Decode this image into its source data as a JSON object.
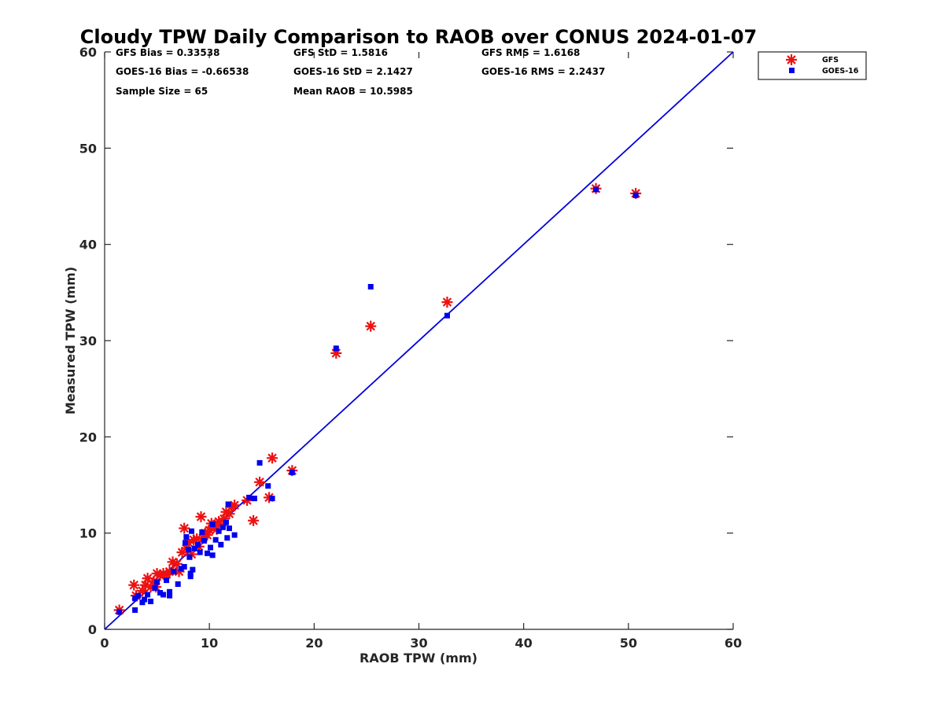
{
  "chart_data": {
    "type": "scatter",
    "title": "Cloudy TPW Daily Comparison to RAOB over CONUS 2024-01-07",
    "xlabel": "RAOB TPW (mm)",
    "ylabel": "Measured TPW (mm)",
    "xlim": [
      0,
      60
    ],
    "ylim": [
      0,
      60
    ],
    "xticks": [
      "0",
      "10",
      "20",
      "30",
      "40",
      "50",
      "60"
    ],
    "yticks": [
      "0",
      "10",
      "20",
      "30",
      "40",
      "50",
      "60"
    ],
    "reference_line": {
      "from": [
        0,
        0
      ],
      "to": [
        60,
        60
      ],
      "color": "#0000dd"
    },
    "legend_position": "top-right outside",
    "stats": [
      "GFS Bias = 0.33538",
      "GFS StD = 1.5816",
      "GFS RMS = 1.6168",
      "GOES-16 Bias = -0.66538",
      "GOES-16 StD = 2.1427",
      "GOES-16 RMS = 2.2437",
      "Sample Size = 65",
      "Mean RAOB = 10.5985"
    ],
    "series": [
      {
        "name": "GFS",
        "marker": "asterisk",
        "color": "#ee1111",
        "points": [
          [
            1.4,
            2.0
          ],
          [
            2.8,
            4.6
          ],
          [
            3.0,
            3.5
          ],
          [
            3.6,
            4.0
          ],
          [
            3.9,
            4.6
          ],
          [
            4.1,
            5.3
          ],
          [
            4.4,
            4.4
          ],
          [
            4.7,
            5.0
          ],
          [
            4.9,
            4.4
          ],
          [
            5.0,
            5.8
          ],
          [
            5.3,
            5.6
          ],
          [
            5.6,
            5.8
          ],
          [
            5.9,
            5.7
          ],
          [
            6.2,
            6.0
          ],
          [
            6.5,
            7.0
          ],
          [
            6.9,
            6.8
          ],
          [
            7.1,
            6.0
          ],
          [
            7.4,
            8.0
          ],
          [
            7.6,
            10.5
          ],
          [
            7.8,
            8.4
          ],
          [
            8.0,
            9.0
          ],
          [
            8.3,
            7.8
          ],
          [
            8.5,
            9.3
          ],
          [
            8.8,
            9.4
          ],
          [
            9.0,
            8.6
          ],
          [
            9.2,
            11.7
          ],
          [
            9.4,
            9.5
          ],
          [
            9.6,
            10.0
          ],
          [
            9.8,
            9.8
          ],
          [
            10.0,
            10.3
          ],
          [
            10.2,
            11.0
          ],
          [
            10.4,
            10.8
          ],
          [
            10.7,
            10.4
          ],
          [
            10.9,
            11.2
          ],
          [
            11.1,
            10.8
          ],
          [
            11.4,
            11.5
          ],
          [
            11.6,
            12.2
          ],
          [
            11.9,
            12.0
          ],
          [
            12.1,
            12.7
          ],
          [
            12.4,
            12.9
          ],
          [
            13.6,
            13.4
          ],
          [
            14.2,
            11.3
          ],
          [
            14.8,
            15.3
          ],
          [
            15.7,
            13.7
          ],
          [
            16.0,
            17.8
          ],
          [
            17.9,
            16.5
          ],
          [
            22.1,
            28.7
          ],
          [
            25.4,
            31.5
          ],
          [
            32.7,
            34.0
          ],
          [
            46.9,
            45.8
          ],
          [
            50.7,
            45.3
          ]
        ]
      },
      {
        "name": "GOES-16",
        "marker": "square",
        "color": "#0000ee",
        "points": [
          [
            1.4,
            1.8
          ],
          [
            2.9,
            2.0
          ],
          [
            2.9,
            3.2
          ],
          [
            3.2,
            3.5
          ],
          [
            3.6,
            2.8
          ],
          [
            3.8,
            3.1
          ],
          [
            4.1,
            3.6
          ],
          [
            4.4,
            2.9
          ],
          [
            4.8,
            4.3
          ],
          [
            5.0,
            4.9
          ],
          [
            5.3,
            3.8
          ],
          [
            5.6,
            3.6
          ],
          [
            5.9,
            5.1
          ],
          [
            6.2,
            3.5
          ],
          [
            6.2,
            3.9
          ],
          [
            6.6,
            6.0
          ],
          [
            7.0,
            4.7
          ],
          [
            7.3,
            6.3
          ],
          [
            7.6,
            6.5
          ],
          [
            7.7,
            9.0
          ],
          [
            7.8,
            9.6
          ],
          [
            8.0,
            8.3
          ],
          [
            8.1,
            7.5
          ],
          [
            8.2,
            5.5
          ],
          [
            8.2,
            5.8
          ],
          [
            8.3,
            10.2
          ],
          [
            8.4,
            6.2
          ],
          [
            8.6,
            8.4
          ],
          [
            8.9,
            8.8
          ],
          [
            9.1,
            8.0
          ],
          [
            9.3,
            10.1
          ],
          [
            9.5,
            9.2
          ],
          [
            9.8,
            7.9
          ],
          [
            10.1,
            8.5
          ],
          [
            10.3,
            10.9
          ],
          [
            10.3,
            7.7
          ],
          [
            10.6,
            9.3
          ],
          [
            10.9,
            10.2
          ],
          [
            11.1,
            8.8
          ],
          [
            11.3,
            10.6
          ],
          [
            11.6,
            11.1
          ],
          [
            11.7,
            9.5
          ],
          [
            11.8,
            13.0
          ],
          [
            11.9,
            10.5
          ],
          [
            12.4,
            9.8
          ],
          [
            13.8,
            13.7
          ],
          [
            14.3,
            13.6
          ],
          [
            14.8,
            17.3
          ],
          [
            15.6,
            14.9
          ],
          [
            16.0,
            13.6
          ],
          [
            17.9,
            16.3
          ],
          [
            22.1,
            29.2
          ],
          [
            25.4,
            35.6
          ],
          [
            32.7,
            32.6
          ],
          [
            46.9,
            45.7
          ],
          [
            50.7,
            45.1
          ]
        ]
      }
    ]
  }
}
